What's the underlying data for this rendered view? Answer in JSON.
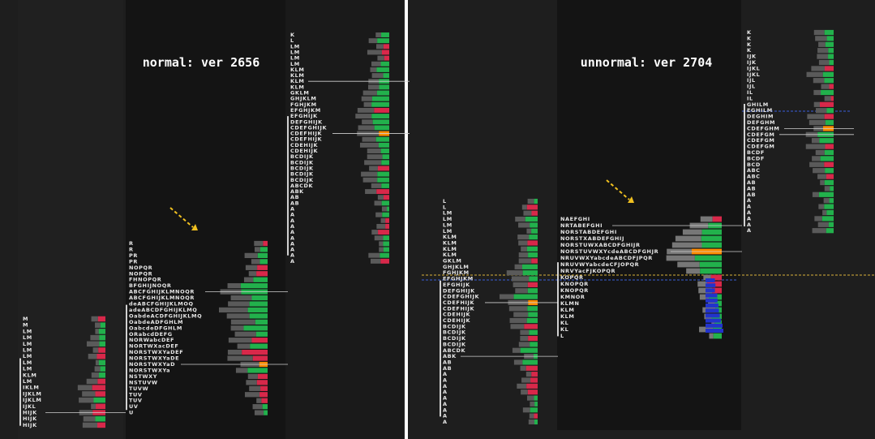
{
  "titles": [
    "normal: ver 2656",
    "unnormal: ver 2704"
  ],
  "profiles": [
    {
      "rows": [
        "M",
        "M",
        "LM",
        "LM",
        "LM",
        "LM",
        "LM",
        "LM",
        "LM",
        "KLM",
        "LM",
        "IKLM",
        "IJKLM",
        "IJKLM",
        "IJKL",
        "HIJK",
        "HIJK",
        "HIJK"
      ]
    },
    {
      "rows": [
        "R",
        "R",
        "PR",
        "PR",
        "NOPQR",
        "NOPQR",
        "FHNOPQR",
        "BFGHIJNOQR",
        "ABCFGHIJKLMNOQR",
        "ABCFGHIJKLMNOQR",
        "deABCFGHIJKLMOQ",
        "adeABCDFGHIJKLMQ",
        "OabdeACDFGHIJKLMQ",
        "OabdeADFGHLM",
        "OabcdeDFGHLM",
        "ORabcdDEFG",
        "NORWabcDEF",
        "NORTWXacDEF",
        "NORSTWXYaDEF",
        "NORSTWXYaDE",
        "NORSTWXYaD",
        "NORSTWXYa",
        "NSTWXY",
        "NSTUVW",
        "TUVW",
        "TUV",
        "TUV",
        "UV",
        "U"
      ]
    },
    {
      "rows": [
        "K",
        "L",
        "LM",
        "LM",
        "LM",
        "LM",
        "KLM",
        "KLM",
        "KLM",
        "KLM",
        "GKLM",
        "GHJKLM",
        "FGHJKM",
        "EFGHJKM",
        "EFGHIJK",
        "DEFGHIJK",
        "CDEFGHIJK",
        "CDEFHIJK",
        "CDEFHIJK",
        "CDEHIJK",
        "CDEHIJK",
        "BCDIJK",
        "BCDIJK",
        "BCDIJK",
        "BCDIJK",
        "BCDIJK",
        "ABCDK",
        "ABK",
        "AB",
        "AB",
        "A",
        "A",
        "A",
        "A",
        "A",
        "A",
        "A",
        "A",
        "A",
        "A"
      ]
    },
    {
      "rows": [
        "L",
        "L",
        "LM",
        "LM",
        "LM",
        "LM",
        "KLM",
        "KLM",
        "KLM",
        "KLM",
        "GKLM",
        "GHJKLM",
        "FGHJKM",
        "EFGHJKM",
        "EFGHIJK",
        "DEFGHIJK",
        "CDEFGHIJK",
        "CDEFHIJK",
        "CDEFHIJK",
        "CDEHIJK",
        "CDEHIJK",
        "BCDIJK",
        "BCDIJK",
        "BCDIJK",
        "BCDIJK",
        "ABCDK",
        "ABK",
        "AB",
        "AB",
        "A",
        "A",
        "A",
        "A",
        "A",
        "A",
        "A",
        "A",
        "A"
      ]
    },
    {
      "rows": [
        "NAEFGHI",
        "NRTABEFGHI",
        "NORSTABDEFGHI",
        "NORSTXABDEFGHIJ",
        "NORSTUWXABCDFGHIJR",
        "NORSTUVWXYcdeABCDFGHJR",
        "NRUVWXYabcdeABCDFJPQR",
        "NRUVWYabcdeCFJOPQR",
        "NRVYacFJKOPQR",
        "KOPQR",
        "KNOPQR",
        "KNOPQR",
        "KMNOR",
        "KLMN",
        "KLM",
        "KLM",
        "KL",
        "KL",
        "L"
      ]
    },
    {
      "rows": [
        "K",
        "K",
        "K",
        "K",
        "IJK",
        "IJK",
        "IJKL",
        "IJKL",
        "IJL",
        "IJL",
        "IL",
        "IL",
        "GHILM",
        "EGHILM",
        "DEGHIM",
        "DEFGHM",
        "CDEFGHM",
        "CDEFGM",
        "CDEFGM",
        "CDEFGM",
        "BCDF",
        "BCDF",
        "BCD",
        "ABC",
        "ABC",
        "AB",
        "AB",
        "AB",
        "A",
        "A",
        "A",
        "A",
        "A",
        "A"
      ]
    }
  ]
}
